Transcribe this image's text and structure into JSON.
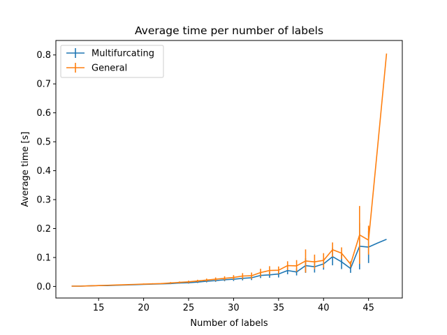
{
  "chart_data": {
    "type": "line",
    "title": "Average time per number of labels",
    "xlabel": "Number of labels",
    "ylabel": "Average time [s]",
    "xlim": [
      10.25,
      48.75
    ],
    "ylim": [
      -0.04,
      0.85
    ],
    "xticks": [
      15,
      20,
      25,
      30,
      35,
      40,
      45
    ],
    "yticks": [
      0.0,
      0.1,
      0.2,
      0.3,
      0.4,
      0.5,
      0.6,
      0.7,
      0.8
    ],
    "xtick_labels": [
      "15",
      "20",
      "25",
      "30",
      "35",
      "40",
      "45"
    ],
    "ytick_labels": [
      "0.0",
      "0.1",
      "0.2",
      "0.3",
      "0.4",
      "0.5",
      "0.6",
      "0.7",
      "0.8"
    ],
    "grid": false,
    "legend_position": "upper-left",
    "x": [
      12,
      13,
      14,
      15,
      16,
      17,
      18,
      19,
      20,
      21,
      22,
      23,
      24,
      25,
      26,
      27,
      28,
      29,
      30,
      31,
      32,
      33,
      34,
      35,
      36,
      37,
      38,
      39,
      40,
      41,
      42,
      43,
      44,
      45,
      46,
      47
    ],
    "series": [
      {
        "name": "Multifurcating",
        "color": "#1f77b4",
        "values": [
          0.001,
          0.001,
          0.002,
          0.003,
          0.003,
          0.004,
          0.005,
          0.006,
          0.007,
          0.008,
          0.009,
          0.01,
          0.012,
          0.013,
          0.015,
          0.018,
          0.02,
          0.023,
          0.025,
          0.028,
          0.03,
          0.038,
          0.04,
          0.043,
          0.055,
          0.05,
          0.072,
          0.068,
          0.078,
          0.103,
          0.085,
          0.062,
          0.139,
          0.136,
          0.15,
          0.163
        ],
        "errors": [
          0.0,
          0.0,
          0.0,
          0.0,
          0.0,
          0.0,
          0.001,
          0.001,
          0.001,
          0.001,
          0.002,
          0.002,
          0.002,
          0.003,
          0.003,
          0.004,
          0.004,
          0.005,
          0.006,
          0.007,
          0.008,
          0.009,
          0.01,
          0.012,
          0.013,
          0.012,
          0.025,
          0.02,
          0.02,
          0.03,
          0.025,
          0.015,
          0.08,
          0.055,
          0.0,
          0.0
        ]
      },
      {
        "name": "General",
        "color": "#ff7f0e",
        "values": [
          0.001,
          0.001,
          0.002,
          0.003,
          0.004,
          0.005,
          0.006,
          0.007,
          0.008,
          0.009,
          0.01,
          0.012,
          0.014,
          0.016,
          0.019,
          0.022,
          0.025,
          0.028,
          0.031,
          0.036,
          0.037,
          0.048,
          0.055,
          0.056,
          0.072,
          0.071,
          0.088,
          0.085,
          0.09,
          0.127,
          0.115,
          0.077,
          0.178,
          0.16,
          0.48,
          0.805
        ],
        "errors": [
          0.0,
          0.0,
          0.0,
          0.0,
          0.0,
          0.001,
          0.001,
          0.001,
          0.002,
          0.002,
          0.002,
          0.003,
          0.003,
          0.004,
          0.004,
          0.005,
          0.006,
          0.007,
          0.008,
          0.01,
          0.011,
          0.013,
          0.015,
          0.013,
          0.015,
          0.02,
          0.04,
          0.025,
          0.025,
          0.025,
          0.02,
          0.01,
          0.1,
          0.05,
          0.0,
          0.0
        ]
      }
    ]
  }
}
